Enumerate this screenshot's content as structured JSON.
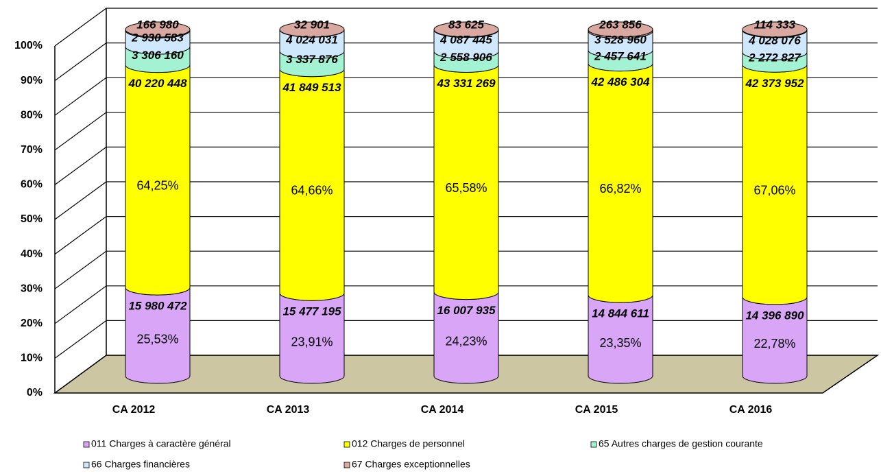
{
  "chart_data": {
    "type": "cylinder_stacked",
    "stacked": "percent",
    "categories": [
      "CA 2012",
      "CA 2013",
      "CA 2014",
      "CA 2015",
      "CA 2016"
    ],
    "ylim": [
      0,
      100
    ],
    "yticks": [
      {
        "value": 0,
        "label": "0%"
      },
      {
        "value": 10,
        "label": "10%"
      },
      {
        "value": 20,
        "label": "20%"
      },
      {
        "value": 30,
        "label": "30%"
      },
      {
        "value": 40,
        "label": "40%"
      },
      {
        "value": 50,
        "label": "50%"
      },
      {
        "value": 60,
        "label": "60%"
      },
      {
        "value": 70,
        "label": "70%"
      },
      {
        "value": 80,
        "label": "80%"
      },
      {
        "value": 90,
        "label": "90%"
      },
      {
        "value": 100,
        "label": "100%"
      }
    ],
    "grid": true,
    "legend": "bottom",
    "series": [
      {
        "name": "011 Charges à caractère général",
        "color": "#d9a6f7",
        "values": [
          15980472,
          15477195,
          16007935,
          14844611,
          14396890
        ],
        "value_labels": [
          "15 980 472",
          "15 477 195",
          "16 007 935",
          "14 844 611",
          "14 396 890"
        ],
        "percent_labels": [
          "25,53%",
          "23,91%",
          "24,23%",
          "23,35%",
          "22,78%"
        ]
      },
      {
        "name": "012 Charges de personnel",
        "color": "#ffff00",
        "values": [
          40220448,
          41849513,
          43331269,
          42486304,
          42373952
        ],
        "value_labels": [
          "40 220 448",
          "41 849 513",
          "43 331 269",
          "42 486 304",
          "42 373 952"
        ],
        "percent_labels": [
          "64,25%",
          "64,66%",
          "65,58%",
          "66,82%",
          "67,06%"
        ]
      },
      {
        "name": "65 Autres charges de gestion courante",
        "color": "#a3f2d4",
        "values": [
          3306160,
          3337876,
          2558906,
          2457641,
          2272827
        ],
        "value_labels": [
          "3 306 160",
          "3 337 876",
          "2 558 906",
          "2 457 641",
          "2 272 827"
        ]
      },
      {
        "name": "66 Charges financières",
        "color": "#cfe8fb",
        "values": [
          2930583,
          4024031,
          4087445,
          3528960,
          4028076
        ],
        "value_labels": [
          "2 930 583",
          "4 024 031",
          "4 087 445",
          "3 528 960",
          "4 028 076"
        ]
      },
      {
        "name": "67 Charges exceptionnelles",
        "color": "#d9a8a0",
        "values": [
          166980,
          32901,
          83625,
          263856,
          114333
        ],
        "value_labels": [
          "166 980",
          "32 901",
          "83 625",
          "263 856",
          "114 333"
        ]
      }
    ]
  }
}
